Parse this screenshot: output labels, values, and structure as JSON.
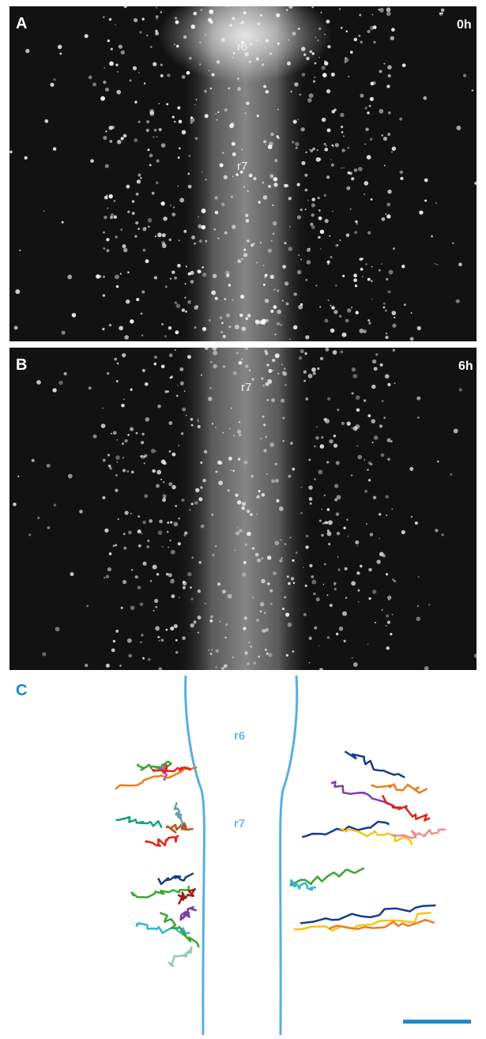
{
  "panels": [
    {
      "label": "A",
      "time": "0h",
      "regions": [
        "r6",
        "r7"
      ]
    },
    {
      "label": "B",
      "time": "6h",
      "regions": [
        "r7"
      ]
    },
    {
      "label": "C",
      "regions": [
        "r6",
        "r7"
      ]
    }
  ]
}
